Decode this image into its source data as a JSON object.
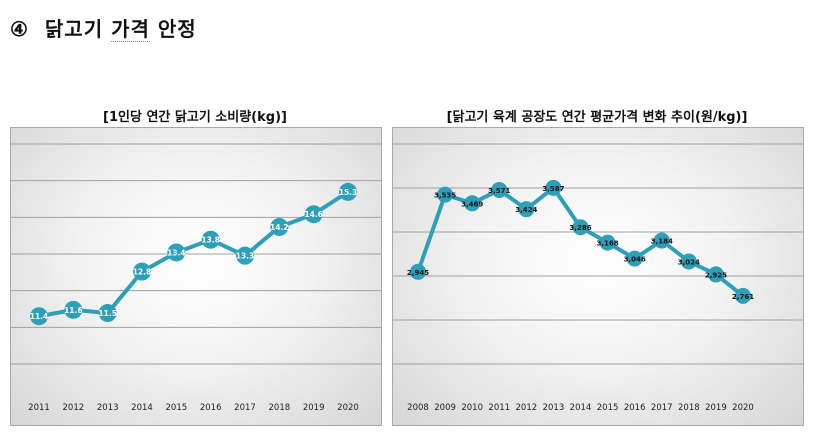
{
  "heading": {
    "number": "④",
    "word1": "닭고기",
    "word2": "가격",
    "word3": "안정"
  },
  "colors": {
    "line": "#2e9fb8",
    "grid": "#a0a0a0"
  },
  "chart_data": [
    {
      "type": "line",
      "title": "[1인당 연간 닭고기 소비량(kg)]",
      "categories": [
        "2011",
        "2012",
        "2013",
        "2014",
        "2015",
        "2016",
        "2017",
        "2018",
        "2019",
        "2020"
      ],
      "values": [
        11.4,
        11.6,
        11.5,
        12.8,
        13.4,
        13.8,
        13.3,
        14.2,
        14.6,
        15.3
      ],
      "labels": [
        "11.4",
        "11.6",
        "11.5",
        "12.8",
        "13.4",
        "13.8",
        "13.3",
        "14.2",
        "14.6",
        "15.3"
      ],
      "ylim": [
        9.4,
        16.3
      ],
      "gridlines": 7,
      "xlabel": "",
      "ylabel": ""
    },
    {
      "type": "line",
      "title": "[닭고기 육계 공장도 연간 평균가격 변화 추이(원/kg)]",
      "categories": [
        "2008",
        "2009",
        "2010",
        "2011",
        "2012",
        "2013",
        "2014",
        "2015",
        "2016",
        "2017",
        "2018",
        "2019",
        "2020"
      ],
      "values": [
        2945,
        3535,
        3469,
        3571,
        3424,
        3587,
        3286,
        3168,
        3046,
        3184,
        3024,
        2925,
        2761
      ],
      "labels": [
        "2,945",
        "3,535",
        "3,469",
        "3,571",
        "3,424",
        "3,587",
        "3,286",
        "3,168",
        "3,046",
        "3,184",
        "3,024",
        "2,925",
        "2,761"
      ],
      "ylim": [
        2500,
        3800
      ],
      "gridlines": 6,
      "xlabel": "",
      "ylabel": ""
    }
  ]
}
